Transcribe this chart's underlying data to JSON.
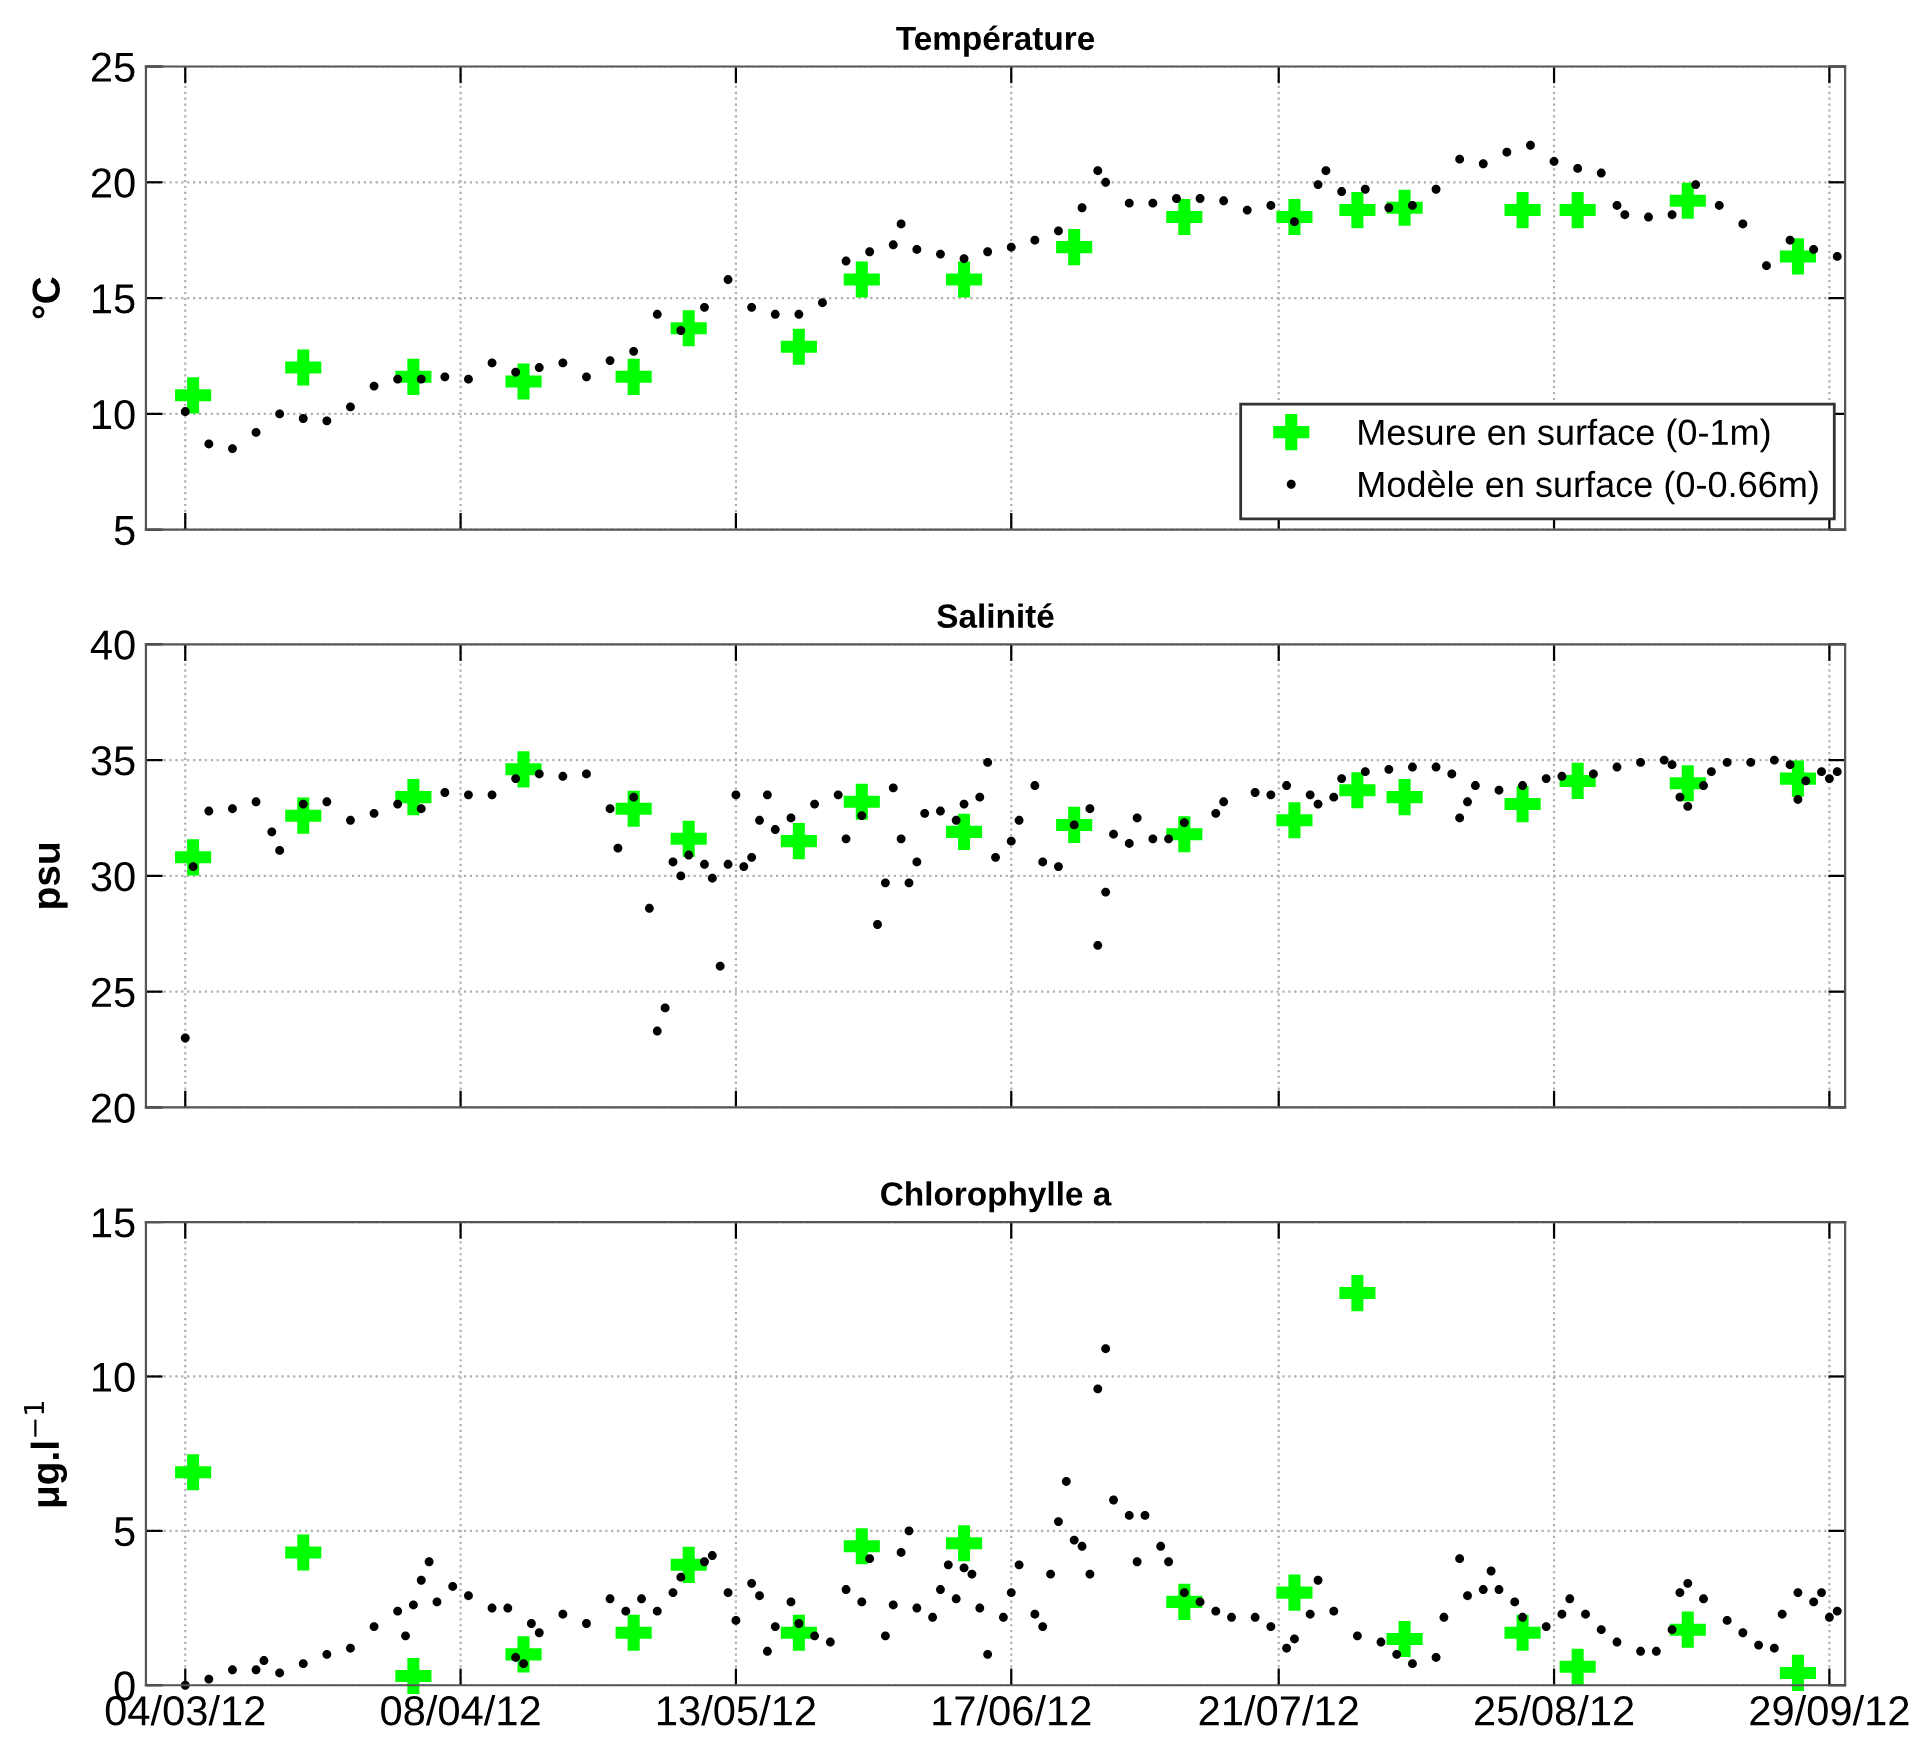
{
  "chart_data": [
    {
      "type": "scatter",
      "title": "Température",
      "ylabel": "°C",
      "xlim": [
        "2012-02-28",
        "2012-10-01"
      ],
      "xticks": [
        {
          "value": "2012-03-04",
          "label": null
        },
        {
          "value": "2012-04-08",
          "label": null
        },
        {
          "value": "2012-05-13",
          "label": null
        },
        {
          "value": "2012-06-17",
          "label": null
        },
        {
          "value": "2012-07-21",
          "label": null
        },
        {
          "value": "2012-08-25",
          "label": null
        },
        {
          "value": "2012-09-29",
          "label": null
        }
      ],
      "ylim": [
        5,
        25
      ],
      "yticks": [
        5,
        10,
        15,
        20,
        25
      ],
      "grid": true,
      "legend": "bottom right",
      "tick_labels": "y",
      "series": [
        {
          "name": "Mesure en surface (0-1m)",
          "color": "#00ff00",
          "marker": "cross",
          "x": [
            "2012-03-05",
            "2012-03-19",
            "2012-04-02",
            "2012-04-16",
            "2012-04-30",
            "2012-05-07",
            "2012-05-21",
            "2012-05-29",
            "2012-06-11",
            "2012-06-25",
            "2012-07-09",
            "2012-07-23",
            "2012-07-31",
            "2012-08-06",
            "2012-08-21",
            "2012-08-28",
            "2012-09-11",
            "2012-09-25"
          ],
          "values": [
            10.8,
            12.0,
            11.6,
            11.4,
            11.6,
            13.7,
            12.9,
            15.8,
            15.8,
            17.2,
            18.5,
            18.5,
            18.8,
            18.9,
            18.8,
            18.8,
            19.2,
            16.8
          ]
        },
        {
          "name": "Modèle en surface (0-0.66m)",
          "color": "#000000",
          "marker": "circle",
          "x": [
            "2012-03-04",
            "2012-03-07",
            "2012-03-10",
            "2012-03-13",
            "2012-03-16",
            "2012-03-19",
            "2012-03-22",
            "2012-03-25",
            "2012-03-28",
            "2012-03-31",
            "2012-04-03",
            "2012-04-06",
            "2012-04-09",
            "2012-04-12",
            "2012-04-15",
            "2012-04-18",
            "2012-04-21",
            "2012-04-24",
            "2012-04-27",
            "2012-04-30",
            "2012-05-03",
            "2012-05-06",
            "2012-05-09",
            "2012-05-12",
            "2012-05-15",
            "2012-05-18",
            "2012-05-21",
            "2012-05-24",
            "2012-05-27",
            "2012-05-30",
            "2012-06-02",
            "2012-06-03",
            "2012-06-05",
            "2012-06-08",
            "2012-06-11",
            "2012-06-14",
            "2012-06-17",
            "2012-06-20",
            "2012-06-23",
            "2012-06-26",
            "2012-06-28",
            "2012-06-29",
            "2012-07-02",
            "2012-07-05",
            "2012-07-08",
            "2012-07-11",
            "2012-07-14",
            "2012-07-17",
            "2012-07-20",
            "2012-07-23",
            "2012-07-26",
            "2012-07-27",
            "2012-07-29",
            "2012-08-01",
            "2012-08-04",
            "2012-08-07",
            "2012-08-10",
            "2012-08-13",
            "2012-08-16",
            "2012-08-19",
            "2012-08-22",
            "2012-08-25",
            "2012-08-28",
            "2012-08-31",
            "2012-09-02",
            "2012-09-03",
            "2012-09-06",
            "2012-09-09",
            "2012-09-12",
            "2012-09-15",
            "2012-09-18",
            "2012-09-21",
            "2012-09-24",
            "2012-09-27",
            "2012-09-30"
          ],
          "values": [
            10.1,
            8.7,
            8.5,
            9.2,
            10.0,
            9.8,
            9.7,
            10.3,
            11.2,
            11.5,
            11.5,
            11.6,
            11.5,
            12.2,
            11.8,
            12.0,
            12.2,
            11.6,
            12.3,
            12.7,
            14.3,
            13.6,
            14.6,
            15.8,
            14.6,
            14.3,
            14.3,
            14.8,
            16.6,
            17.0,
            17.3,
            18.2,
            17.1,
            16.9,
            16.7,
            17.0,
            17.2,
            17.5,
            17.9,
            18.9,
            20.5,
            20.0,
            19.1,
            19.1,
            19.3,
            19.3,
            19.2,
            18.8,
            19.0,
            18.3,
            19.9,
            20.5,
            19.6,
            19.7,
            18.9,
            19.0,
            19.7,
            21.0,
            20.8,
            21.3,
            21.6,
            20.9,
            20.6,
            20.4,
            19.0,
            18.6,
            18.5,
            18.6,
            19.9,
            19.0,
            18.2,
            16.4,
            17.5,
            17.1,
            16.8
          ]
        }
      ]
    },
    {
      "type": "scatter",
      "title": "Salinité",
      "ylabel": "psu",
      "xlim": [
        "2012-02-28",
        "2012-10-01"
      ],
      "xticks": [
        {
          "value": "2012-03-04",
          "label": null
        },
        {
          "value": "2012-04-08",
          "label": null
        },
        {
          "value": "2012-05-13",
          "label": null
        },
        {
          "value": "2012-06-17",
          "label": null
        },
        {
          "value": "2012-07-21",
          "label": null
        },
        {
          "value": "2012-08-25",
          "label": null
        },
        {
          "value": "2012-09-29",
          "label": null
        }
      ],
      "ylim": [
        20,
        40
      ],
      "yticks": [
        20,
        25,
        30,
        35,
        40
      ],
      "grid": true,
      "tick_labels": "y",
      "series": [
        {
          "color": "#00ff00",
          "marker": "cross",
          "x": [
            "2012-03-05",
            "2012-03-19",
            "2012-04-02",
            "2012-04-16",
            "2012-04-30",
            "2012-05-07",
            "2012-05-21",
            "2012-05-29",
            "2012-06-11",
            "2012-06-25",
            "2012-07-09",
            "2012-07-23",
            "2012-07-31",
            "2012-08-06",
            "2012-08-21",
            "2012-08-28",
            "2012-09-11",
            "2012-09-25"
          ],
          "values": [
            30.8,
            32.6,
            33.4,
            34.6,
            32.9,
            31.6,
            31.5,
            33.2,
            31.9,
            32.2,
            31.8,
            32.4,
            33.7,
            33.4,
            33.1,
            34.1,
            34.0,
            34.2
          ]
        },
        {
          "color": "#000000",
          "marker": "circle",
          "x": [
            "2012-03-04",
            "2012-03-05",
            "2012-03-07",
            "2012-03-10",
            "2012-03-13",
            "2012-03-15",
            "2012-03-16",
            "2012-03-19",
            "2012-03-22",
            "2012-03-25",
            "2012-03-28",
            "2012-03-31",
            "2012-04-03",
            "2012-04-06",
            "2012-04-09",
            "2012-04-12",
            "2012-04-15",
            "2012-04-18",
            "2012-04-21",
            "2012-04-24",
            "2012-04-27",
            "2012-04-28",
            "2012-04-30",
            "2012-05-02",
            "2012-05-03",
            "2012-05-04",
            "2012-05-05",
            "2012-05-06",
            "2012-05-07",
            "2012-05-09",
            "2012-05-10",
            "2012-05-11",
            "2012-05-12",
            "2012-05-13",
            "2012-05-14",
            "2012-05-15",
            "2012-05-16",
            "2012-05-17",
            "2012-05-18",
            "2012-05-20",
            "2012-05-23",
            "2012-05-26",
            "2012-05-27",
            "2012-05-29",
            "2012-05-31",
            "2012-06-01",
            "2012-06-02",
            "2012-06-03",
            "2012-06-04",
            "2012-06-05",
            "2012-06-06",
            "2012-06-08",
            "2012-06-10",
            "2012-06-11",
            "2012-06-13",
            "2012-06-14",
            "2012-06-15",
            "2012-06-17",
            "2012-06-18",
            "2012-06-20",
            "2012-06-21",
            "2012-06-23",
            "2012-06-25",
            "2012-06-27",
            "2012-06-28",
            "2012-06-29",
            "2012-06-30",
            "2012-07-02",
            "2012-07-03",
            "2012-07-05",
            "2012-07-07",
            "2012-07-09",
            "2012-07-13",
            "2012-07-14",
            "2012-07-18",
            "2012-07-20",
            "2012-07-22",
            "2012-07-25",
            "2012-07-26",
            "2012-07-28",
            "2012-07-29",
            "2012-08-01",
            "2012-08-04",
            "2012-08-07",
            "2012-08-10",
            "2012-08-12",
            "2012-08-13",
            "2012-08-14",
            "2012-08-15",
            "2012-08-18",
            "2012-08-21",
            "2012-08-24",
            "2012-08-26",
            "2012-08-30",
            "2012-09-02",
            "2012-09-05",
            "2012-09-08",
            "2012-09-09",
            "2012-09-10",
            "2012-09-11",
            "2012-09-13",
            "2012-09-14",
            "2012-09-16",
            "2012-09-19",
            "2012-09-22",
            "2012-09-24",
            "2012-09-25",
            "2012-09-26",
            "2012-09-28",
            "2012-09-29",
            "2012-09-30"
          ],
          "values": [
            23.0,
            30.4,
            32.8,
            32.9,
            33.2,
            31.9,
            31.1,
            33.1,
            33.2,
            32.4,
            32.7,
            33.1,
            32.9,
            33.6,
            33.5,
            33.5,
            34.2,
            34.4,
            34.3,
            34.4,
            32.9,
            31.2,
            33.4,
            28.6,
            23.3,
            24.3,
            30.6,
            30.0,
            30.9,
            30.5,
            29.9,
            26.1,
            30.5,
            33.5,
            30.4,
            30.8,
            32.4,
            33.5,
            32.0,
            32.5,
            33.1,
            33.5,
            31.6,
            32.6,
            27.9,
            29.7,
            33.8,
            31.6,
            29.7,
            30.6,
            32.7,
            32.8,
            32.4,
            33.1,
            33.4,
            34.9,
            30.8,
            31.5,
            32.4,
            33.9,
            30.6,
            30.4,
            32.2,
            32.9,
            27.0,
            29.3,
            31.8,
            31.4,
            32.5,
            31.6,
            31.6,
            32.3,
            32.7,
            33.2,
            33.6,
            33.5,
            33.9,
            33.5,
            33.1,
            33.4,
            34.2,
            34.5,
            34.6,
            34.7,
            34.7,
            34.4,
            32.5,
            33.2,
            33.9,
            33.7,
            33.9,
            34.2,
            34.3,
            34.4,
            34.7,
            34.9,
            35.0,
            34.8,
            33.4,
            33.0,
            33.9,
            34.5,
            34.9,
            34.9,
            35.0,
            34.8,
            33.3,
            34.1,
            34.5,
            34.2,
            34.5
          ]
        }
      ]
    },
    {
      "type": "scatter",
      "title": "Chlorophylle a",
      "ylabel": "μg.l$^{−1}$",
      "xlim": [
        "2012-02-28",
        "2012-10-01"
      ],
      "xticks": [
        {
          "value": "2012-03-04",
          "label": "04/03/12"
        },
        {
          "value": "2012-04-08",
          "label": "08/04/12"
        },
        {
          "value": "2012-05-13",
          "label": "13/05/12"
        },
        {
          "value": "2012-06-17",
          "label": "17/06/12"
        },
        {
          "value": "2012-07-21",
          "label": "21/07/12"
        },
        {
          "value": "2012-08-25",
          "label": "25/08/12"
        },
        {
          "value": "2012-09-29",
          "label": "29/09/12"
        }
      ],
      "ylim": [
        0,
        15
      ],
      "yticks": [
        0,
        5,
        10,
        15
      ],
      "grid": true,
      "series": [
        {
          "color": "#00ff00",
          "marker": "cross",
          "x": [
            "2012-03-05",
            "2012-03-19",
            "2012-04-02",
            "2012-04-16",
            "2012-04-30",
            "2012-05-07",
            "2012-05-21",
            "2012-05-29",
            "2012-06-11",
            "2012-06-25",
            "2012-07-09",
            "2012-07-23",
            "2012-07-31",
            "2012-08-06",
            "2012-08-21",
            "2012-08-28",
            "2012-09-11",
            "2012-09-25"
          ],
          "values": [
            6.9,
            4.3,
            0.3,
            1.0,
            1.7,
            3.9,
            1.7,
            4.5,
            4.6,
            null,
            2.7,
            3.0,
            12.7,
            1.5,
            1.7,
            0.6,
            1.8,
            0.4
          ]
        },
        {
          "color": "#000000",
          "marker": "circle",
          "x": [
            "2012-03-04",
            "2012-03-07",
            "2012-03-10",
            "2012-03-13",
            "2012-03-14",
            "2012-03-16",
            "2012-03-19",
            "2012-03-22",
            "2012-03-25",
            "2012-03-28",
            "2012-03-31",
            "2012-04-01",
            "2012-04-02",
            "2012-04-03",
            "2012-04-04",
            "2012-04-05",
            "2012-04-07",
            "2012-04-09",
            "2012-04-12",
            "2012-04-14",
            "2012-04-15",
            "2012-04-16",
            "2012-04-17",
            "2012-04-18",
            "2012-04-21",
            "2012-04-24",
            "2012-04-27",
            "2012-04-29",
            "2012-05-01",
            "2012-05-03",
            "2012-05-05",
            "2012-05-06",
            "2012-05-09",
            "2012-05-10",
            "2012-05-12",
            "2012-05-13",
            "2012-05-15",
            "2012-05-16",
            "2012-05-17",
            "2012-05-18",
            "2012-05-20",
            "2012-05-21",
            "2012-05-23",
            "2012-05-25",
            "2012-05-27",
            "2012-05-29",
            "2012-05-30",
            "2012-06-01",
            "2012-06-02",
            "2012-06-03",
            "2012-06-04",
            "2012-06-05",
            "2012-06-07",
            "2012-06-08",
            "2012-06-09",
            "2012-06-10",
            "2012-06-11",
            "2012-06-12",
            "2012-06-13",
            "2012-06-14",
            "2012-06-16",
            "2012-06-17",
            "2012-06-18",
            "2012-06-20",
            "2012-06-21",
            "2012-06-22",
            "2012-06-23",
            "2012-06-24",
            "2012-06-25",
            "2012-06-26",
            "2012-06-27",
            "2012-06-28",
            "2012-06-29",
            "2012-06-30",
            "2012-07-02",
            "2012-07-03",
            "2012-07-04",
            "2012-07-06",
            "2012-07-07",
            "2012-07-09",
            "2012-07-11",
            "2012-07-13",
            "2012-07-15",
            "2012-07-18",
            "2012-07-20",
            "2012-07-22",
            "2012-07-23",
            "2012-07-25",
            "2012-07-26",
            "2012-07-28",
            "2012-07-31",
            "2012-08-03",
            "2012-08-05",
            "2012-08-07",
            "2012-08-10",
            "2012-08-11",
            "2012-08-13",
            "2012-08-14",
            "2012-08-16",
            "2012-08-17",
            "2012-08-18",
            "2012-08-20",
            "2012-08-21",
            "2012-08-24",
            "2012-08-26",
            "2012-08-27",
            "2012-08-29",
            "2012-08-31",
            "2012-09-02",
            "2012-09-05",
            "2012-09-07",
            "2012-09-09",
            "2012-09-10",
            "2012-09-11",
            "2012-09-13",
            "2012-09-16",
            "2012-09-18",
            "2012-09-20",
            "2012-09-22",
            "2012-09-23",
            "2012-09-25",
            "2012-09-27",
            "2012-09-28",
            "2012-09-29",
            "2012-09-30"
          ],
          "values": [
            0.0,
            0.2,
            0.5,
            0.5,
            0.8,
            0.4,
            0.7,
            1.0,
            1.2,
            1.9,
            2.4,
            1.6,
            2.6,
            3.4,
            4.0,
            2.7,
            3.2,
            2.9,
            2.5,
            2.5,
            0.9,
            0.7,
            2.0,
            1.7,
            2.3,
            2.0,
            2.8,
            2.4,
            2.8,
            2.4,
            3.0,
            3.5,
            4.0,
            4.2,
            3.0,
            2.1,
            3.3,
            2.9,
            1.1,
            1.9,
            2.7,
            2.0,
            1.6,
            1.4,
            3.1,
            2.7,
            4.1,
            1.6,
            2.6,
            4.3,
            5.0,
            2.5,
            2.2,
            3.1,
            3.9,
            2.8,
            3.8,
            3.6,
            2.5,
            1.0,
            2.2,
            3.0,
            3.9,
            2.3,
            1.9,
            3.6,
            5.3,
            6.6,
            4.7,
            4.5,
            3.6,
            9.6,
            10.9,
            6.0,
            5.5,
            4.0,
            5.5,
            4.5,
            4.0,
            3.0,
            2.7,
            2.4,
            2.2,
            2.2,
            1.9,
            1.2,
            1.5,
            2.3,
            3.4,
            2.4,
            1.6,
            1.4,
            1.0,
            0.7,
            0.9,
            2.2,
            4.1,
            2.9,
            3.1,
            3.7,
            3.1,
            2.7,
            2.2,
            1.9,
            2.3,
            2.8,
            2.3,
            1.8,
            1.4,
            1.1,
            1.1,
            1.8,
            3.0,
            3.3,
            2.8,
            2.1,
            1.7,
            1.3,
            1.2,
            2.3,
            3.0,
            2.7,
            3.0,
            2.2,
            2.4
          ]
        }
      ]
    }
  ]
}
